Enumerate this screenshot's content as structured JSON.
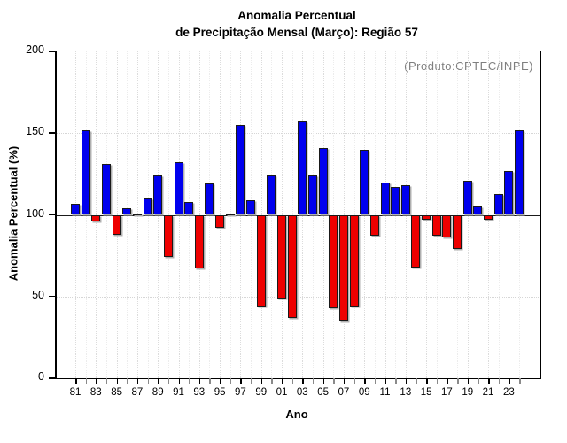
{
  "window": {
    "title": "Anomalia Percentual de Precipitação Mensal (Março): Região 57"
  },
  "header": {
    "title_line1": "Anomalia Percentual",
    "title_line2": "de Precipitação Mensal (Março): Região 57"
  },
  "annotation": {
    "source_label": "(Produto:CPTEC/INPE)"
  },
  "chart_data": {
    "type": "bar",
    "title": "Anomalia Percentual de Precipitação Mensal (Março): Região 57",
    "xlabel": "Ano",
    "ylabel": "Anomalia Percentual (%)",
    "ylim": [
      0,
      200
    ],
    "yticks": [
      0,
      50,
      100,
      150,
      200
    ],
    "baseline": 100,
    "grid": true,
    "legend_position": "none",
    "x": [
      1981,
      1982,
      1983,
      1984,
      1985,
      1986,
      1987,
      1988,
      1989,
      1990,
      1991,
      1992,
      1993,
      1994,
      1995,
      1996,
      1997,
      1998,
      1999,
      2000,
      2001,
      2002,
      2003,
      2004,
      2005,
      2006,
      2007,
      2008,
      2009,
      2010,
      2011,
      2012,
      2013,
      2014,
      2015,
      2016,
      2017,
      2018,
      2019,
      2020,
      2021,
      2022,
      2023,
      2024
    ],
    "x_tick_labels": [
      "81",
      "83",
      "85",
      "87",
      "89",
      "91",
      "93",
      "95",
      "97",
      "99",
      "01",
      "03",
      "05",
      "07",
      "09",
      "11",
      "13",
      "15",
      "17",
      "19",
      "21",
      "23"
    ],
    "values": [
      107,
      152,
      96,
      131,
      88,
      104,
      101,
      110,
      124,
      74,
      132,
      108,
      67,
      119,
      92,
      101,
      155,
      109,
      44,
      124,
      49,
      37,
      157,
      124,
      141,
      43,
      35,
      44,
      140,
      87,
      120,
      117,
      118,
      68,
      97,
      87,
      86,
      79,
      121,
      105,
      97,
      113,
      127,
      152
    ],
    "colors": {
      "above_baseline": "#0000ee",
      "below_baseline": "#ee0000",
      "bar_border": "#1a1a1a",
      "annotation_text": "#7f7f7f",
      "grid": "#d6d6d6"
    }
  }
}
